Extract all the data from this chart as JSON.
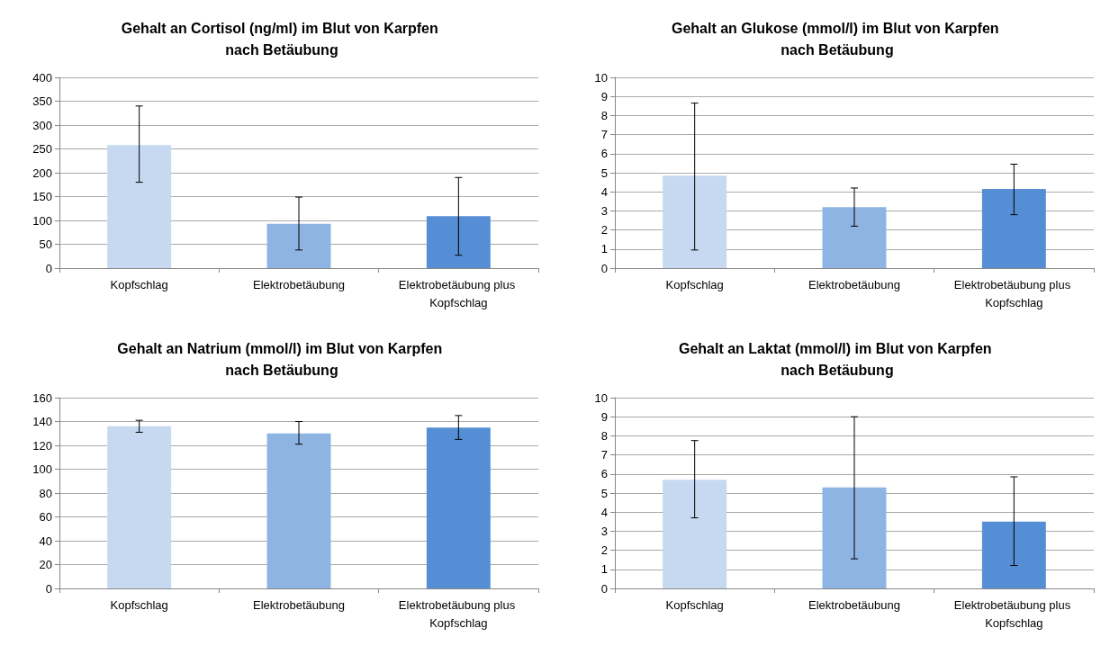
{
  "chart_data": [
    {
      "type": "bar",
      "title": "Gehalt an Cortisol (ng/ml) im Blut von Karpfen nach Betäubung",
      "categories": [
        "Kopfschlag",
        "Elektrobetäubung",
        "Elektrobetäubung plus Kopfschlag"
      ],
      "values": [
        258,
        93,
        109
      ],
      "errors": [
        [
          180,
          340
        ],
        [
          38,
          149
        ],
        [
          27,
          190
        ]
      ],
      "colors": [
        "#c6d9f1",
        "#8eb4e3",
        "#558ed5"
      ],
      "ylim": [
        0,
        400
      ],
      "yticks": [
        0,
        50,
        100,
        150,
        200,
        250,
        300,
        350,
        400
      ],
      "grid": "y"
    },
    {
      "type": "bar",
      "title": "Gehalt an Glukose (mmol/l) im Blut von Karpfen nach Betäubung",
      "categories": [
        "Kopfschlag",
        "Elektrobetäubung",
        "Elektrobetäubung plus Kopfschlag"
      ],
      "values": [
        4.85,
        3.2,
        4.15
      ],
      "errors": [
        [
          0.95,
          8.65
        ],
        [
          2.2,
          4.2
        ],
        [
          2.8,
          5.45
        ]
      ],
      "colors": [
        "#c6d9f1",
        "#8eb4e3",
        "#558ed5"
      ],
      "ylim": [
        0,
        10
      ],
      "yticks": [
        0,
        1,
        2,
        3,
        4,
        5,
        6,
        7,
        8,
        9,
        10
      ],
      "grid": "y"
    },
    {
      "type": "bar",
      "title": "Gehalt an Natrium (mmol/l) im Blut von Karpfen nach Betäubung",
      "categories": [
        "Kopfschlag",
        "Elektrobetäubung",
        "Elektrobetäubung plus Kopfschlag"
      ],
      "values": [
        136,
        130,
        135
      ],
      "errors": [
        [
          131,
          141
        ],
        [
          121,
          140
        ],
        [
          125,
          145
        ]
      ],
      "colors": [
        "#c6d9f1",
        "#8eb4e3",
        "#558ed5"
      ],
      "ylim": [
        0,
        160
      ],
      "yticks": [
        0,
        20,
        40,
        60,
        80,
        100,
        120,
        140,
        160
      ],
      "grid": "y"
    },
    {
      "type": "bar",
      "title": "Gehalt an Laktat (mmol/l) im Blut von Karpfen nach Betäubung",
      "categories": [
        "Kopfschlag",
        "Elektrobetäubung",
        "Elektrobetäubung plus Kopfschlag"
      ],
      "values": [
        5.7,
        5.3,
        3.5
      ],
      "errors": [
        [
          3.7,
          7.75
        ],
        [
          1.55,
          9.0
        ],
        [
          1.2,
          5.85
        ]
      ],
      "colors": [
        "#c6d9f1",
        "#8eb4e3",
        "#558ed5"
      ],
      "ylim": [
        0,
        10
      ],
      "yticks": [
        0,
        1,
        2,
        3,
        4,
        5,
        6,
        7,
        8,
        9,
        10
      ],
      "grid": "y"
    }
  ]
}
